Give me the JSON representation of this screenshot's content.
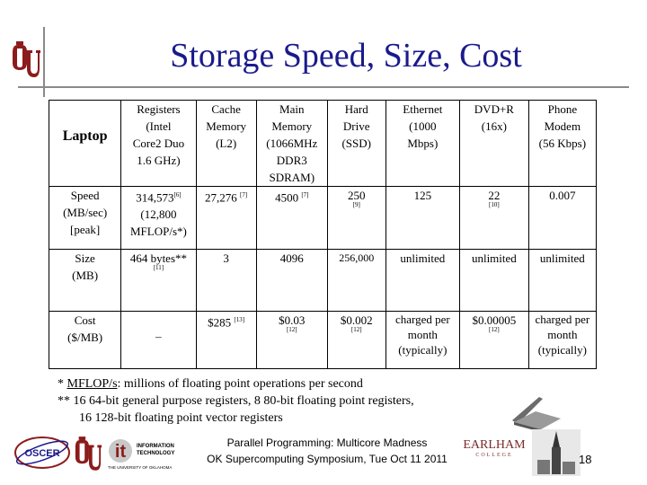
{
  "title": "Storage Speed, Size, Cost",
  "table": {
    "corner": "Laptop",
    "headers": [
      {
        "lines": [
          "Registers",
          "(Intel",
          "Core2 Duo",
          "1.6 GHz)"
        ]
      },
      {
        "lines": [
          "Cache",
          "Memory",
          "(L2)"
        ]
      },
      {
        "lines": [
          "Main",
          "Memory",
          "(1066MHz",
          "DDR3",
          "SDRAM)"
        ]
      },
      {
        "lines": [
          "Hard",
          "Drive",
          "(SSD)"
        ]
      },
      {
        "lines": [
          "Ethernet",
          "(1000",
          "Mbps)"
        ]
      },
      {
        "lines": [
          "DVD+R",
          "(16x)"
        ]
      },
      {
        "lines": [
          "Phone",
          "Modem",
          "(56 Kbps)"
        ]
      }
    ],
    "rows": [
      {
        "label": [
          "Speed",
          "(MB/sec)",
          "[peak]"
        ],
        "cells": [
          {
            "value": "314,573",
            "ref": "[6]",
            "extra": [
              "(12,800",
              "MFLOP/s*)"
            ]
          },
          {
            "value": "27,276",
            "ref": "[7]"
          },
          {
            "value": "4500",
            "ref": "[7]"
          },
          {
            "value": "250",
            "subref": "[9]"
          },
          {
            "value": "125"
          },
          {
            "value": "22",
            "subref": "[10]"
          },
          {
            "value": "0.007"
          }
        ]
      },
      {
        "label": [
          "Size",
          "(MB)"
        ],
        "cells": [
          {
            "value": "464 bytes**",
            "subref": "[11]"
          },
          {
            "value": "3"
          },
          {
            "value": "4096"
          },
          {
            "value": "256,000"
          },
          {
            "value": "unlimited"
          },
          {
            "value": "unlimited"
          },
          {
            "value": "unlimited"
          }
        ]
      },
      {
        "label": [
          "Cost",
          "($/MB)"
        ],
        "cells": [
          {
            "value": "–"
          },
          {
            "value": "$285",
            "ref": "[13]"
          },
          {
            "value": "$0.03",
            "subref": "[12]"
          },
          {
            "value": "$0.002",
            "subref": "[12]"
          },
          {
            "value": "charged per month (typically)"
          },
          {
            "value": "$0.00005",
            "subref": "[12]"
          },
          {
            "value": "charged per month (typically)"
          }
        ]
      }
    ]
  },
  "notes": {
    "n1_prefix": "* ",
    "n1_term": "MFLOP/s",
    "n1_rest": ": millions of floating point operations per second",
    "n2_line1": "** 16 64-bit general purpose registers, 8 80-bit floating point registers,",
    "n2_line2": "16 128-bit floating point vector registers"
  },
  "footer": {
    "line1": "Parallel Programming: Multicore Madness",
    "line2": "OK Supercomputing Symposium, Tue Oct 11 2011"
  },
  "page_number": "18",
  "logos": {
    "oscer": "OSCER",
    "it_main": "it",
    "it_small1": "INFORMATION",
    "it_small2": "TECHNOLOGY",
    "it_sub": "THE UNIVERSITY OF OKLAHOMA",
    "earlham": "EARLHAM",
    "earlham_sub": "COLLEGE"
  },
  "colors": {
    "title": "#1a1a8c",
    "ou_crimson": "#8c1c1c",
    "rule": "#8a8a8a"
  }
}
